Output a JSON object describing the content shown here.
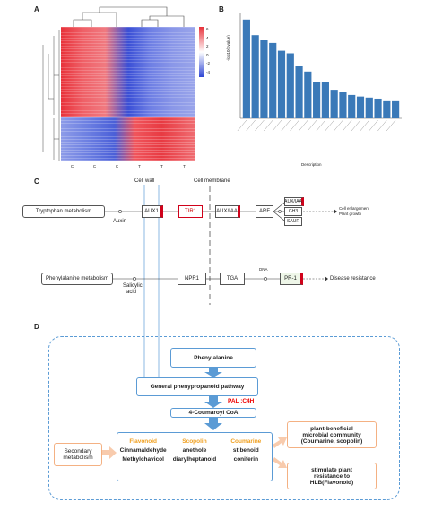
{
  "panels": {
    "a": "A",
    "b": "B",
    "c": "C",
    "d": "D"
  },
  "heatmap": {
    "columns": [
      "C",
      "C",
      "C",
      "T",
      "T",
      "T"
    ],
    "legend_ticks": [
      "6",
      "4",
      "2",
      "0",
      "-2",
      "-4"
    ]
  },
  "bar_chart": {
    "xlabel": "Description",
    "ylabel": "-log10(pvalue)"
  },
  "chart_data": {
    "type": "bar",
    "xlabel": "Description",
    "ylabel": "-log10(pvalue)",
    "values": [
      1.9,
      1.6,
      1.5,
      1.45,
      1.3,
      1.25,
      1.0,
      0.9,
      0.7,
      0.7,
      0.55,
      0.5,
      0.45,
      0.42,
      0.4,
      0.38,
      0.33,
      0.33
    ]
  },
  "pathway": {
    "cell_wall": "Cell wall",
    "cell_membrane": "Cell membrane",
    "tryptophan": "Tryptophan metabolism",
    "auxin": "Auxin",
    "aux1": "AUX1",
    "tir1": "TIR1",
    "auxiaa": "AUX/IAA",
    "arf": "ARF",
    "dna": "DNA",
    "auxiaa2": "AUX/IAA",
    "gh3": "GH3",
    "saur": "SAUR",
    "cell_enlargement": "Cell enlargement",
    "plant_growth": "Plant growth",
    "phenylalanine": "Phenylalanine metabolism",
    "salicylic": "Salicylic",
    "acid": "acid",
    "npr1": "NPR1",
    "tga": "TGA",
    "dna2": "DNA",
    "pr1": "PR-1",
    "disease": "Disease resistance"
  },
  "flow": {
    "phenylalanine": "Phenylalanine",
    "general": "General phenypropanoid pathway",
    "enzymes": "PAL ;C4H",
    "coumaroyl": "4-Coumaroyl CoA",
    "secondary": "Secondary metabolism",
    "flavonoid": "Flavonoid",
    "scopolin": "Scopolin",
    "coumarine": "Coumarine",
    "cinnamaldehyde": "Cinnamaldehyde",
    "anethole": "anethole",
    "stibenoid": "stibenoid",
    "methylchavicol": "Methylchavicol",
    "diarylheptanoid": "diarylheptanoid",
    "coniferin": "coniferin",
    "beneficial_1": "plant-beneficial",
    "beneficial_2": "microbial community",
    "beneficial_3": "(Coumarine, scopolin)",
    "stimulate_1": "stimulate plant",
    "stimulate_2": "resistance to",
    "stimulate_3": "HLB(Flavonoid)"
  }
}
